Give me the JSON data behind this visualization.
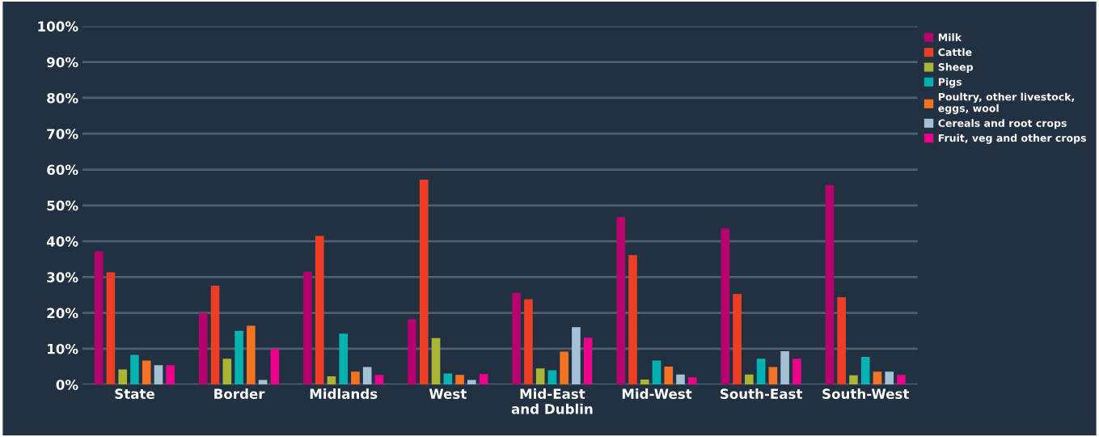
{
  "chart_data": {
    "type": "bar",
    "categories": [
      "State",
      "Border",
      "Midlands",
      "West",
      "Mid-East\nand Dublin",
      "Mid-West",
      "South-East",
      "South-West"
    ],
    "series": [
      {
        "name": "Milk",
        "color": "#b5006e",
        "values": [
          37.2,
          20,
          31.5,
          18.2,
          25.6,
          46.8,
          43.6,
          55.7
        ]
      },
      {
        "name": "Cattle",
        "color": "#ef3e26",
        "values": [
          31.3,
          27.6,
          41.5,
          57.2,
          23.8,
          36.1,
          25.3,
          24.4
        ]
      },
      {
        "name": "Sheep",
        "color": "#a9b533",
        "values": [
          4.2,
          7.2,
          2.3,
          13,
          4.5,
          1.4,
          2.8,
          2.6
        ]
      },
      {
        "name": "Pigs",
        "color": "#00b2b0",
        "values": [
          8.3,
          15,
          14.2,
          3.1,
          4,
          6.7,
          7.2,
          7.7
        ]
      },
      {
        "name": "Poultry, other livestock,\neggs, wool",
        "color": "#f37321",
        "values": [
          6.7,
          16.4,
          3.6,
          2.7,
          9.2,
          5,
          4.9,
          3.6
        ]
      },
      {
        "name": "Cereals and root crops",
        "color": "#a3c0d4",
        "values": [
          5.4,
          1.3,
          4.9,
          1.3,
          16,
          2.8,
          9.3,
          3.6
        ]
      },
      {
        "name": "Fruit, veg and other crops",
        "color": "#eb008b",
        "values": [
          5.4,
          9.9,
          2.7,
          2.9,
          13.1,
          2,
          7.2,
          2.7
        ]
      }
    ],
    "ylim": [
      0,
      100
    ],
    "yticks": [
      {
        "value": 0,
        "label": "0%"
      },
      {
        "value": 10,
        "label": "10%"
      },
      {
        "value": 20,
        "label": "20%"
      },
      {
        "value": 30,
        "label": "30%"
      },
      {
        "value": 40,
        "label": "40%"
      },
      {
        "value": 50,
        "label": "50%"
      },
      {
        "value": 60,
        "label": "60%"
      },
      {
        "value": 70,
        "label": "70%"
      },
      {
        "value": 80,
        "label": "80%"
      },
      {
        "value": 90,
        "label": "90%"
      },
      {
        "value": 100,
        "label": "100%"
      }
    ],
    "grid": "y",
    "legend": "right"
  }
}
